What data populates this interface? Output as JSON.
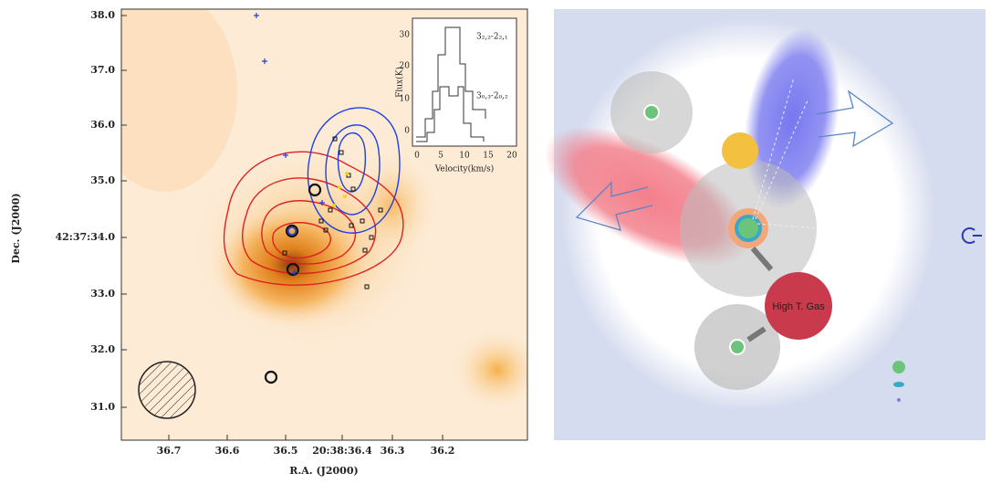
{
  "left_panel": {
    "xlabel": "R.A. (J2000)",
    "ylabel": "Dec. (J2000)",
    "xticks": [
      "36.7",
      "36.6",
      "36.5",
      "20:38:36.4",
      "36.3",
      "36.2"
    ],
    "yticks": [
      "38.0",
      "37.0",
      "36.0",
      "35.0",
      "42:37:34.0",
      "33.0",
      "32.0",
      "31.0"
    ],
    "inset": {
      "ylabel": "Flux(K)",
      "xlabel": "Velocity(km/s)",
      "xticks": [
        "0",
        "5",
        "10",
        "15",
        "20"
      ],
      "yticks": [
        "30",
        "20",
        "10",
        "0"
      ],
      "line_labels": [
        "3₂,₂-2₂,₁",
        "3₀,₃-2₀,₂"
      ]
    }
  },
  "right_panel": {
    "label": "High T. Gas"
  }
}
